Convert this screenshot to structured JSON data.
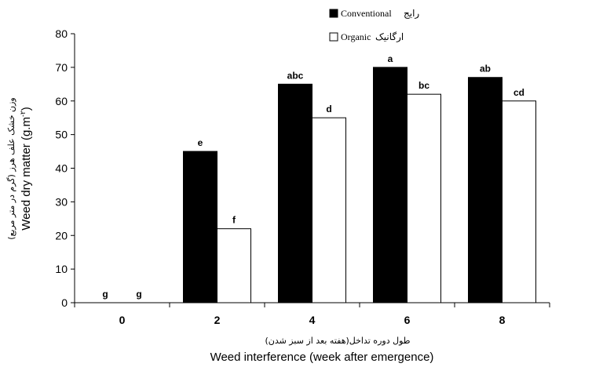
{
  "chart_data": {
    "type": "bar",
    "categories": [
      "0",
      "2",
      "4",
      "6",
      "8"
    ],
    "series": [
      {
        "name": "Conventional",
        "name_fa": "رایج",
        "color": "#000000",
        "values": [
          0,
          45,
          65,
          70,
          67
        ],
        "letters": [
          "g",
          "e",
          "abc",
          "a",
          "ab"
        ]
      },
      {
        "name": "Organic",
        "name_fa": "ارگانیک",
        "color": "#ffffff",
        "values": [
          0,
          22,
          55,
          62,
          60
        ],
        "letters": [
          "g",
          "f",
          "d",
          "bc",
          "cd"
        ]
      }
    ],
    "ylim": [
      0,
      80
    ],
    "yticks": [
      0,
      10,
      20,
      30,
      40,
      50,
      60,
      70,
      80
    ],
    "ylabel": "Weed dry matter (g.m",
    "ylabel_sup": "-۲",
    "ylabel_fa": "وزن خشک علف هرز (گرم در متر مربع)",
    "xlabel": "Weed interference (week after emergence)",
    "xlabel_fa": "طول دوره تداخل(هفته بعد از سبز شدن)",
    "legend_position": "top-right",
    "grid": false
  }
}
